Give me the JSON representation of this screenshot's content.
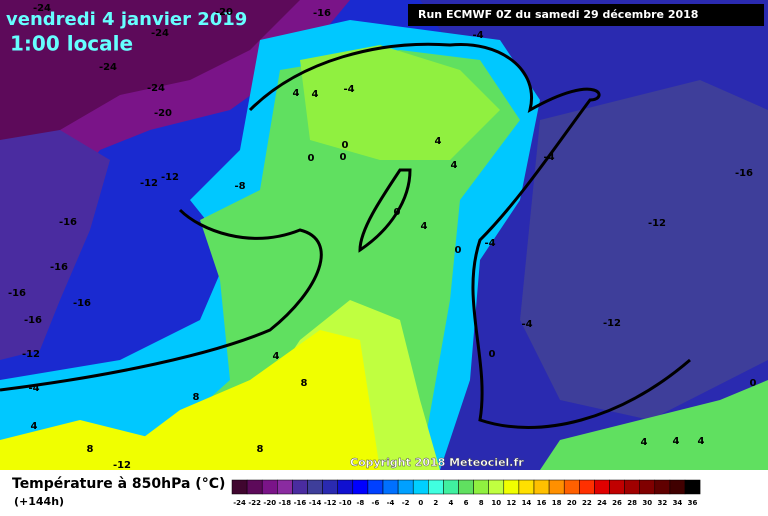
{
  "map": {
    "title": "vendredi 4 janvier 2019",
    "time": "1:00 locale",
    "run": "Run ECMWF 0Z du samedi 29 décembre 2018",
    "copyright": "Copyright 2018 Meteociel.fr",
    "legend": {
      "title": "Température à 850hPa (°C)",
      "lead": "(+144h)",
      "ticks": [
        -24,
        -22,
        -20,
        -18,
        -16,
        -14,
        -12,
        -10,
        -8,
        -6,
        -4,
        -2,
        0,
        2,
        4,
        6,
        8,
        10,
        12,
        14,
        16,
        18,
        20,
        22,
        24,
        26,
        28,
        30,
        32,
        34,
        36
      ],
      "colors": [
        "#40062f",
        "#5d0a5a",
        "#7a1488",
        "#8a2ba0",
        "#4a2ca0",
        "#3e3e9a",
        "#2a2ab0",
        "#1010d0",
        "#0000ff",
        "#0040ff",
        "#0070ff",
        "#00a0ff",
        "#00d0ff",
        "#40ffe0",
        "#40f0a0",
        "#60e060",
        "#90f040",
        "#c0ff40",
        "#f0ff00",
        "#ffe000",
        "#ffc000",
        "#ff9000",
        "#ff6000",
        "#ff3000",
        "#e00000",
        "#c00000",
        "#a00000",
        "#800000",
        "#600000",
        "#400000",
        "#000000"
      ]
    },
    "contour_labels": [
      "-24",
      "-20",
      "-16",
      "-24",
      "-24",
      "-24",
      "-20",
      "-12",
      "-12",
      "-8",
      "-16",
      "-16",
      "-16",
      "-16",
      "-16",
      "-12",
      "-4",
      "4",
      "8",
      "-12",
      "4",
      "8",
      "8",
      "8",
      "4",
      "4",
      "-4",
      "-4",
      "0",
      "0",
      "0",
      "4",
      "4",
      "0",
      "4",
      "0",
      "-4",
      "-4",
      "-12",
      "-16",
      "-12",
      "-4",
      "0",
      "0",
      "4",
      "4",
      "4"
    ]
  }
}
